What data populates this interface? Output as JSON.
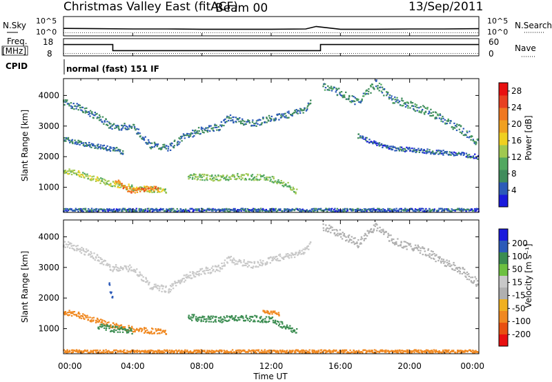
{
  "header": {
    "title": "Christmas Valley East (fitACF)",
    "beam": "Beam 00",
    "date": "13/Sep/2011"
  },
  "noise_panel": {
    "left_label": "N.Sky",
    "right_label": "N.Search",
    "left_ticks": [
      "10^5",
      "10^0"
    ],
    "right_ticks": [
      "10^5",
      "10^0"
    ]
  },
  "freq_panel": {
    "left_label_1": "Freq.",
    "left_label_2": "[MHz]",
    "right_label": "Nave",
    "left_ticks": [
      "18",
      "8"
    ],
    "right_ticks": [
      "60",
      "0"
    ]
  },
  "cpid": {
    "label": "CPID",
    "value": "normal (fast) 151 IF"
  },
  "colors": {
    "power_scale": [
      "#1a1adc",
      "#2c5ab8",
      "#3f8c5c",
      "#52a860",
      "#a0c850",
      "#f0d020",
      "#f0a020",
      "#f07820",
      "#e84020",
      "#e81010"
    ],
    "velocity_scale": [
      "#1a1adc",
      "#2c5ab8",
      "#3a8c50",
      "#6cc040",
      "#c8c8c8",
      "#b0b0b0",
      "#f0b020",
      "#f08820",
      "#e85010",
      "#e81010"
    ]
  },
  "chart_data": [
    {
      "type": "line",
      "name": "noise",
      "title": "",
      "xlabel": "",
      "ylabel": "N.Sky",
      "x_range_hours": [
        0,
        24
      ],
      "yscale": "log",
      "ylim_exponent": [
        0,
        5
      ],
      "series": [
        {
          "name": "N.Sky",
          "x": [
            0,
            2,
            4,
            6,
            8,
            10,
            12,
            14,
            14.6,
            16,
            18,
            20,
            22,
            24
          ],
          "values_log10": [
            2.2,
            2.1,
            2.0,
            2.0,
            1.9,
            1.9,
            1.9,
            2.0,
            2.9,
            1.9,
            1.9,
            2.0,
            2.0,
            2.1
          ]
        },
        {
          "name": "N.Search",
          "x": [
            0,
            24
          ],
          "values_log10": [
            0.6,
            0.6
          ]
        }
      ]
    },
    {
      "type": "line",
      "name": "frequency",
      "xlabel": "",
      "ylabel": "Freq. [MHz]",
      "x_range_hours": [
        0,
        24
      ],
      "ylim": [
        8,
        18
      ],
      "series": [
        {
          "name": "Freq.",
          "x": [
            0,
            2.85,
            2.85,
            14.85,
            14.85,
            24
          ],
          "values": [
            15.2,
            15.2,
            10.8,
            10.8,
            15.2,
            15.2
          ]
        },
        {
          "name": "Nave",
          "x": [
            0,
            24
          ],
          "values": [
            8.8,
            8.8
          ]
        }
      ]
    },
    {
      "type": "heatmap",
      "name": "power",
      "xlabel": "",
      "ylabel": "Slant Range [km]",
      "colorbar_label": "Power [dB]",
      "x_range_hours": [
        0,
        24
      ],
      "ylim": [
        180,
        4550
      ],
      "y_ticks": [
        1000,
        2000,
        3000,
        4000
      ],
      "colorbar_ticks": [
        4,
        8,
        12,
        16,
        20,
        24,
        28
      ],
      "colorbar_range": [
        0,
        30
      ],
      "bands": [
        {
          "x": [
            0.0,
            1.0,
            2.0,
            3.0,
            4.0,
            5.0,
            6.0
          ],
          "y": [
            1560,
            1450,
            1250,
            1100,
            1000,
            950,
            900
          ],
          "width": 180,
          "value": 14
        },
        {
          "x": [
            3.0,
            3.5,
            4.0,
            4.5,
            5.0,
            5.5
          ],
          "y": [
            1250,
            1000,
            900,
            950,
            1000,
            950
          ],
          "width": 150,
          "value": 22
        },
        {
          "x": [
            7.2,
            8.0,
            9.0,
            10.0,
            11.0,
            12.0,
            13.0,
            13.5
          ],
          "y": [
            1400,
            1350,
            1320,
            1380,
            1350,
            1300,
            1050,
            880
          ],
          "width": 200,
          "value": 12
        },
        {
          "x": [
            0.0,
            1.0,
            2.0,
            2.8,
            3.2,
            4.0,
            5.0,
            6.0,
            7.0,
            8.0,
            9.0,
            9.5,
            10.0,
            11.0,
            12.0,
            13.0,
            14.0,
            14.3
          ],
          "y": [
            3800,
            3600,
            3300,
            3000,
            3000,
            3000,
            2400,
            2300,
            2700,
            2900,
            3000,
            3300,
            3200,
            3100,
            3300,
            3400,
            3600,
            3950
          ],
          "width": 220,
          "value": 6
        },
        {
          "x": [
            0.0,
            1.0,
            2.0,
            3.0,
            3.5
          ],
          "y": [
            2600,
            2450,
            2350,
            2250,
            2150
          ],
          "width": 150,
          "value": 6
        },
        {
          "x": [
            15.0,
            16.0,
            17.0,
            18.0,
            19.0,
            20.0,
            21.0,
            22.0,
            23.0,
            24.0
          ],
          "y": [
            4350,
            4100,
            3800,
            4400,
            3900,
            3700,
            3500,
            3200,
            2900,
            2450
          ],
          "width": 260,
          "value": 7
        },
        {
          "x": [
            17.0,
            18.0,
            19.0,
            20.0,
            21.0,
            22.0,
            23.0,
            24.0
          ],
          "y": [
            2700,
            2450,
            2300,
            2250,
            2200,
            2150,
            2100,
            2000
          ],
          "width": 150,
          "value": 5
        },
        {
          "x": [
            0.0,
            24.0
          ],
          "y": [
            280,
            280
          ],
          "width": 100,
          "value": 5
        }
      ]
    },
    {
      "type": "heatmap",
      "name": "velocity",
      "xlabel": "Time UT",
      "ylabel": "Slant Range [km]",
      "colorbar_label": "Velocity [m s⁻¹]",
      "x_range_hours": [
        0,
        24
      ],
      "x_ticks": [
        "00:00",
        "04:00",
        "08:00",
        "12:00",
        "16:00",
        "20:00",
        "00:00"
      ],
      "ylim": [
        180,
        4550
      ],
      "y_ticks": [
        1000,
        2000,
        3000,
        4000
      ],
      "colorbar_ticks": [
        200,
        100,
        50,
        15,
        -15,
        -50,
        -100,
        -200
      ],
      "bands": [
        {
          "x": [
            0.0,
            1.0,
            2.0,
            3.0,
            4.0,
            5.0,
            6.0
          ],
          "y": [
            1560,
            1450,
            1250,
            1100,
            1000,
            950,
            900
          ],
          "width": 180,
          "value": -60
        },
        {
          "x": [
            2.0,
            3.0,
            4.0
          ],
          "y": [
            1100,
            1000,
            950
          ],
          "width": 200,
          "value": 60
        },
        {
          "x": [
            7.2,
            8.0,
            9.0,
            10.0,
            11.0,
            12.0,
            13.0,
            13.5
          ],
          "y": [
            1400,
            1350,
            1320,
            1380,
            1350,
            1300,
            1050,
            880
          ],
          "width": 200,
          "value": 70
        },
        {
          "x": [
            11.5,
            12.0,
            12.5
          ],
          "y": [
            1600,
            1550,
            1500
          ],
          "width": 120,
          "value": -80
        },
        {
          "x": [
            0.0,
            1.0,
            2.0,
            2.8,
            3.2,
            4.0,
            5.0,
            6.0,
            7.0,
            8.0,
            9.0,
            9.5,
            10.0,
            11.0,
            12.0,
            13.0,
            14.0,
            14.3
          ],
          "y": [
            3800,
            3600,
            3300,
            3000,
            3000,
            3000,
            2400,
            2300,
            2700,
            2900,
            3000,
            3300,
            3200,
            3100,
            3300,
            3400,
            3600,
            3950
          ],
          "width": 220,
          "value": 5
        },
        {
          "x": [
            15.0,
            16.0,
            17.0,
            18.0,
            19.0,
            20.0,
            21.0,
            22.0,
            23.0,
            24.0
          ],
          "y": [
            4350,
            4100,
            3800,
            4400,
            3900,
            3700,
            3500,
            3200,
            2900,
            2450
          ],
          "width": 260,
          "value": -5
        },
        {
          "x": [
            0.0,
            24.0
          ],
          "y": [
            280,
            280
          ],
          "width": 100,
          "value": -60
        },
        {
          "x": [
            2.6,
            2.9
          ],
          "y": [
            2500,
            1900
          ],
          "width": 250,
          "value": 180
        }
      ]
    }
  ]
}
